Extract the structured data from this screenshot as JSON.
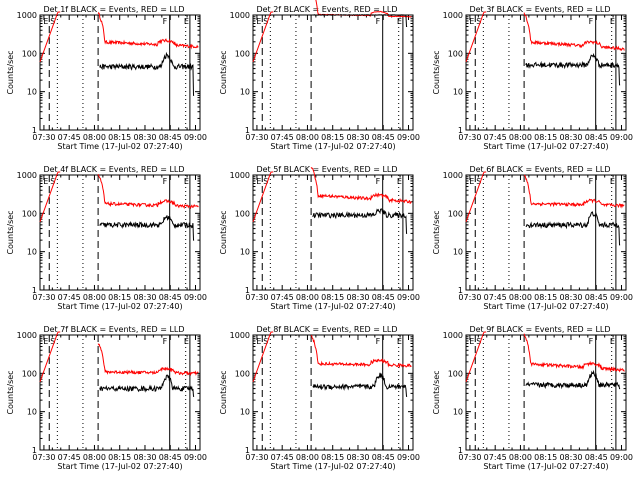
{
  "chart_data": {
    "type": "line",
    "y_scale": "log",
    "ylim": [
      1,
      1000
    ],
    "xlim_minutes": [
      0,
      95
    ],
    "x_tick_labels": [
      "07:30",
      "07:45",
      "08:00",
      "08:15",
      "08:30",
      "08:45",
      "09:00"
    ],
    "x_tick_minutes": [
      2.33,
      17.33,
      32.33,
      47.33,
      62.33,
      77.33,
      92.33
    ],
    "y_tick_labels": [
      "1",
      "10",
      "100",
      "1000"
    ],
    "y_tick_values": [
      1,
      10,
      100,
      1000
    ],
    "xlabel": "Start Time (17-Jul-02 07:27:40)",
    "ylabel": "Counts/sec",
    "marker_labels": {
      "E": "E",
      "S": "S",
      "F": "F"
    },
    "colors": {
      "events": "#000000",
      "lld": "#ff0000"
    },
    "panels": [
      {
        "title": "Det 1f BLACK = Events, RED = LLD",
        "events_level": 45,
        "lld_level": 200,
        "lld_end": 150,
        "ev_peak": 90,
        "ev_end": 8
      },
      {
        "title": "Det 2f BLACK = Events, RED = LLD",
        "events_level": 1000,
        "lld_level": 1050,
        "lld_end": 900,
        "ev_peak": 1000,
        "ev_end": 500,
        "flat": true
      },
      {
        "title": "Det 3f BLACK = Events, RED = LLD",
        "events_level": 50,
        "lld_level": 200,
        "lld_end": 130,
        "ev_peak": 85,
        "ev_end": 15
      },
      {
        "title": "Det 4f BLACK = Events, RED = LLD",
        "events_level": 50,
        "lld_level": 180,
        "lld_end": 150,
        "ev_peak": 80,
        "ev_end": 20
      },
      {
        "title": "Det 5f BLACK = Events, RED = LLD",
        "events_level": 90,
        "lld_level": 300,
        "lld_end": 200,
        "ev_peak": 120,
        "ev_end": 30
      },
      {
        "title": "Det 6f BLACK = Events, RED = LLD",
        "events_level": 50,
        "lld_level": 180,
        "lld_end": 160,
        "ev_peak": 100,
        "ev_end": 15
      },
      {
        "title": "Det 7f BLACK = Events, RED = LLD",
        "events_level": 40,
        "lld_level": 110,
        "lld_end": 100,
        "ev_peak": 80,
        "ev_end": 25
      },
      {
        "title": "Det 8f BLACK = Events, RED = LLD",
        "events_level": 45,
        "lld_level": 180,
        "lld_end": 160,
        "ev_peak": 90,
        "ev_end": 25
      },
      {
        "title": "Det 9f BLACK = Events, RED = LLD",
        "events_level": 50,
        "lld_level": 180,
        "lld_end": 120,
        "ev_peak": 100,
        "ev_end": 40
      }
    ]
  }
}
